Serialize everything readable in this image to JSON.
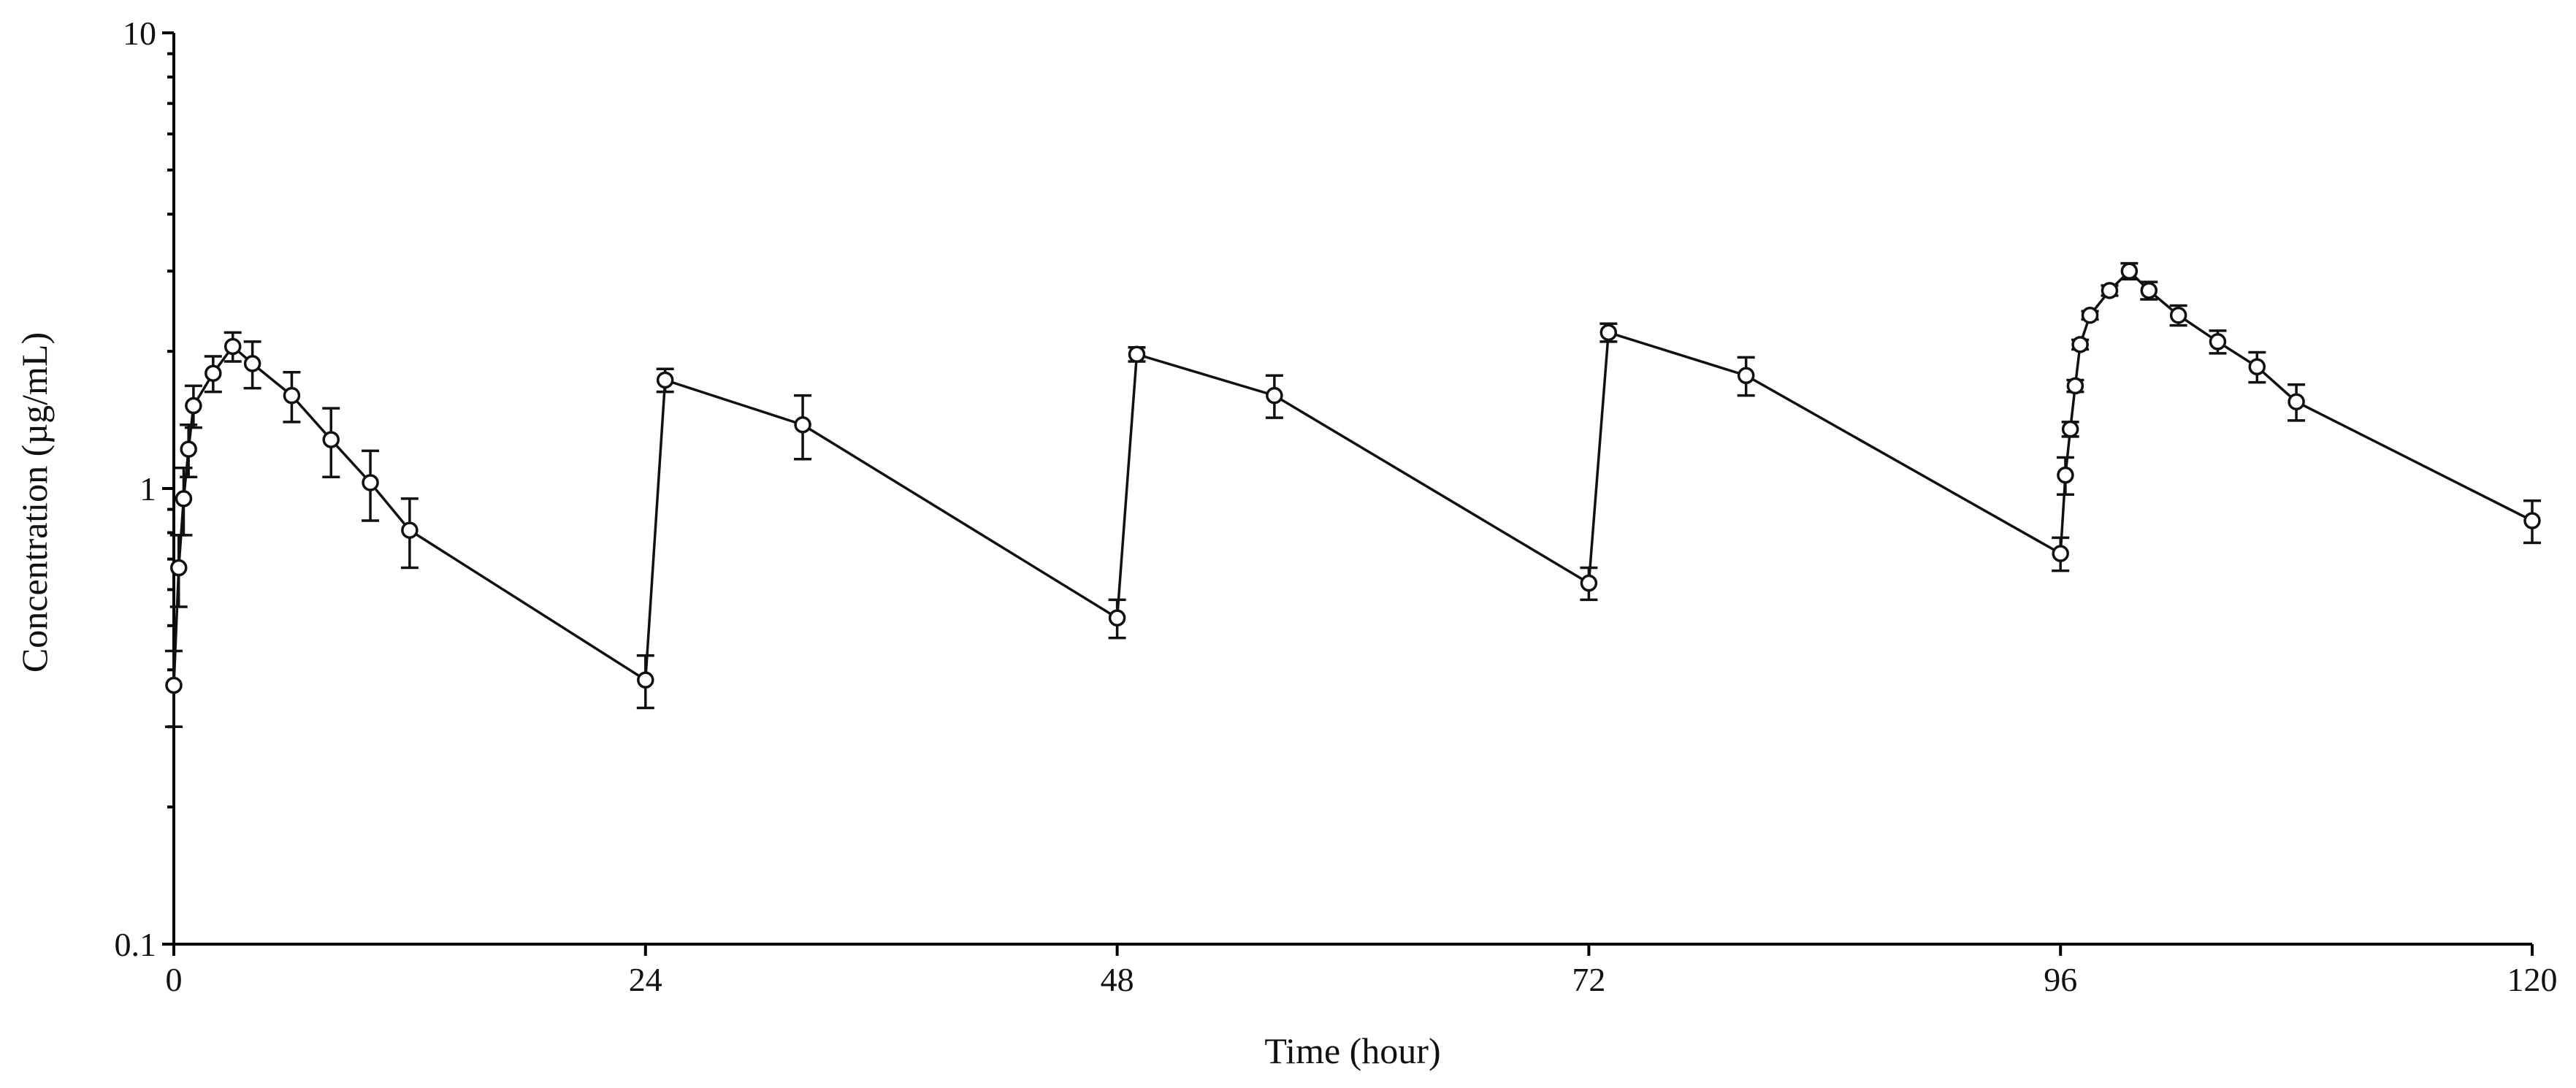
{
  "chart_data": {
    "type": "line",
    "xlabel": "Time (hour)",
    "ylabel": "Concentration  (µg/mL)",
    "xlim": [
      0,
      120
    ],
    "ylim": [
      0.1,
      10
    ],
    "y_scale": "log",
    "x_ticks": [
      {
        "value": 0,
        "label": "0"
      },
      {
        "value": 24,
        "label": "24"
      },
      {
        "value": 48,
        "label": "48"
      },
      {
        "value": 72,
        "label": "72"
      },
      {
        "value": 96,
        "label": "96"
      },
      {
        "value": 120,
        "label": "120"
      }
    ],
    "y_ticks": [
      {
        "value": 0.1,
        "label": "0.1"
      },
      {
        "value": 1,
        "label": "1"
      },
      {
        "value": 10,
        "label": "10"
      }
    ],
    "grid": false,
    "legend": "none",
    "marker": "open-circle",
    "line_color": "#111111",
    "series": [
      {
        "points": [
          {
            "x": 0,
            "y": 0.37,
            "err": 0.07
          },
          {
            "x": 0.25,
            "y": 0.67,
            "err": 0.12
          },
          {
            "x": 0.5,
            "y": 0.95,
            "err": 0.16
          },
          {
            "x": 0.75,
            "y": 1.22,
            "err": 0.16
          },
          {
            "x": 1,
            "y": 1.52,
            "err": 0.16
          },
          {
            "x": 2,
            "y": 1.79,
            "err": 0.16
          },
          {
            "x": 3,
            "y": 2.05,
            "err": 0.15
          },
          {
            "x": 4,
            "y": 1.88,
            "err": 0.22
          },
          {
            "x": 6,
            "y": 1.6,
            "err": 0.2
          },
          {
            "x": 8,
            "y": 1.28,
            "err": 0.22
          },
          {
            "x": 10,
            "y": 1.03,
            "err": 0.18
          },
          {
            "x": 12,
            "y": 0.81,
            "err": 0.14
          },
          {
            "x": 24,
            "y": 0.38,
            "err": 0.05
          },
          {
            "x": 25,
            "y": 1.73,
            "err": 0.1
          },
          {
            "x": 32,
            "y": 1.38,
            "err": 0.22
          },
          {
            "x": 48,
            "y": 0.52,
            "err": 0.05
          },
          {
            "x": 49,
            "y": 1.97,
            "err": 0.07
          },
          {
            "x": 56,
            "y": 1.6,
            "err": 0.17
          },
          {
            "x": 72,
            "y": 0.62,
            "err": 0.05
          },
          {
            "x": 73,
            "y": 2.2,
            "err": 0.1
          },
          {
            "x": 80,
            "y": 1.77,
            "err": 0.17
          },
          {
            "x": 96,
            "y": 0.72,
            "err": 0.06
          },
          {
            "x": 96.25,
            "y": 1.07,
            "err": 0.1
          },
          {
            "x": 96.5,
            "y": 1.35,
            "err": 0.05
          },
          {
            "x": 96.75,
            "y": 1.68,
            "err": 0.05
          },
          {
            "x": 97,
            "y": 2.07,
            "err": 0.05
          },
          {
            "x": 97.5,
            "y": 2.4,
            "err": 0.05
          },
          {
            "x": 98.5,
            "y": 2.72,
            "err": 0.07
          },
          {
            "x": 99.5,
            "y": 3.0,
            "err": 0.12
          },
          {
            "x": 100.5,
            "y": 2.72,
            "err": 0.12
          },
          {
            "x": 102,
            "y": 2.4,
            "err": 0.12
          },
          {
            "x": 104,
            "y": 2.1,
            "err": 0.12
          },
          {
            "x": 106,
            "y": 1.85,
            "err": 0.14
          },
          {
            "x": 108,
            "y": 1.55,
            "err": 0.14
          },
          {
            "x": 120,
            "y": 0.85,
            "err": 0.09
          }
        ]
      }
    ]
  }
}
